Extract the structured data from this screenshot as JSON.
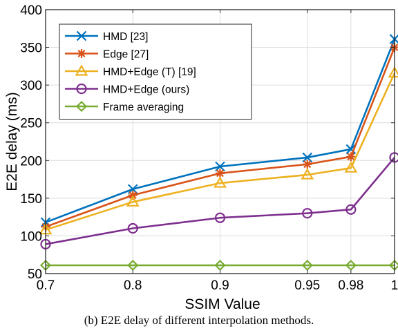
{
  "chart_data": {
    "type": "line",
    "xlabel": "SSIM Value",
    "ylabel": "E2E delay (ms)",
    "x_categories": [
      "0.7",
      "0.8",
      "0.9",
      "0.95",
      "0.98",
      "1"
    ],
    "x_values": [
      0.7,
      0.8,
      0.9,
      0.95,
      0.98,
      1.0
    ],
    "x_tick_positions": [
      0,
      0.25,
      0.5,
      0.75,
      0.875,
      1.0
    ],
    "ylim": [
      50,
      400
    ],
    "y_ticks": [
      50,
      100,
      150,
      200,
      250,
      300,
      350,
      400
    ],
    "grid": true,
    "legend_position": "top-left",
    "series": [
      {
        "name": "HMD [23]",
        "color": "#0072BD",
        "marker": "x",
        "values": [
          118,
          162,
          192,
          204,
          215,
          361
        ]
      },
      {
        "name": "Edge [27]",
        "color": "#D95319",
        "marker": "asterisk",
        "values": [
          112,
          154,
          183,
          195,
          205,
          350
        ]
      },
      {
        "name": "HMD+Edge (T) [19]",
        "color": "#EDB120",
        "marker": "triangle",
        "values": [
          108,
          145,
          170,
          181,
          190,
          316
        ]
      },
      {
        "name": "HMD+Edge (ours)",
        "color": "#7E2F8E",
        "marker": "circle",
        "values": [
          89,
          110,
          124,
          130,
          135,
          204
        ]
      },
      {
        "name": "Frame averaging",
        "color": "#77AC30",
        "marker": "diamond",
        "values": [
          61,
          61,
          61,
          61,
          61,
          61
        ]
      }
    ]
  },
  "caption": "(b) E2E delay of different interpolation methods."
}
